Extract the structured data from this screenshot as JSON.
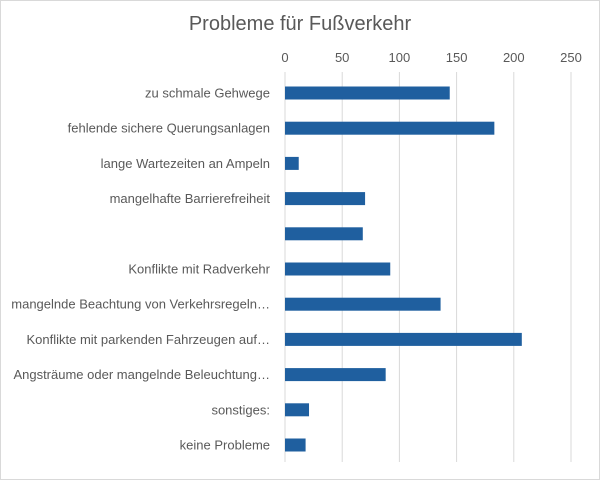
{
  "chart_data": {
    "type": "bar",
    "orientation": "horizontal",
    "title": "Probleme für Fußverkehr",
    "xlabel": "",
    "ylabel": "",
    "xlim": [
      0,
      250
    ],
    "xticks": [
      0,
      50,
      100,
      150,
      200,
      250
    ],
    "grid": true,
    "legend": "none",
    "bar_color": "#1f5f9f",
    "categories": [
      "zu schmale Gehwege",
      "fehlende sichere Querungsanlagen",
      "lange Wartezeiten an Ampeln",
      "mangelhafte Barrierefreiheit",
      "",
      "Konflikte mit Radverkehr",
      "mangelnde Beachtung von Verkehrsregeln…",
      "Konflikte mit parkenden Fahrzeugen auf…",
      "Angsträume oder mangelnde Beleuchtung…",
      "sonstiges:",
      "keine Probleme"
    ],
    "values": [
      144,
      183,
      12,
      70,
      68,
      92,
      136,
      207,
      88,
      21,
      18
    ]
  }
}
